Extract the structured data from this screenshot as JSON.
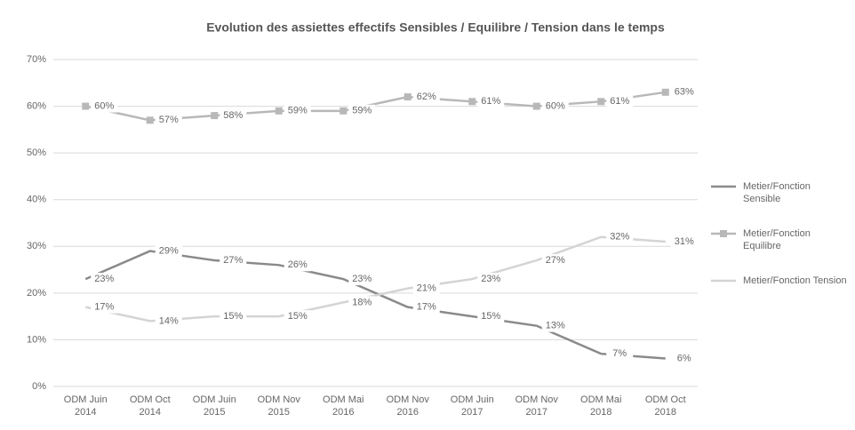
{
  "chart_data": {
    "type": "line",
    "title": "Evolution des assiettes effectifs Sensibles / Equilibre / Tension dans le temps",
    "categories": [
      "ODM Juin 2014",
      "ODM Oct 2014",
      "ODM Juin 2015",
      "ODM Nov 2015",
      "ODM Mai 2016",
      "ODM Nov 2016",
      "ODM Juin 2017",
      "ODM Nov 2017",
      "ODM Mai 2018",
      "ODM Oct 2018"
    ],
    "series": [
      {
        "name": "Metier/Fonction Sensible",
        "color": "#8a8a8a",
        "marker": "none",
        "values": [
          23,
          29,
          27,
          26,
          23,
          17,
          15,
          13,
          7,
          6
        ],
        "value_labels": [
          "23%",
          "29%",
          "27%",
          "26%",
          "23%",
          "17%",
          "15%",
          "13%",
          "7%",
          "6%"
        ]
      },
      {
        "name": "Metier/Fonction Equilibre",
        "color": "#b8b8b8",
        "marker": "square",
        "values": [
          60,
          57,
          58,
          59,
          59,
          62,
          61,
          60,
          61,
          63
        ],
        "value_labels": [
          "60%",
          "57%",
          "58%",
          "59%",
          "59%",
          "62%",
          "61%",
          "60%",
          "61%",
          "63%"
        ]
      },
      {
        "name": "Metier/Fonction Tension",
        "color": "#d4d4d4",
        "marker": "none",
        "values": [
          17,
          14,
          15,
          15,
          18,
          21,
          23,
          27,
          32,
          31
        ],
        "value_labels": [
          "17%",
          "14%",
          "15%",
          "15%",
          "18%",
          "21%",
          "23%",
          "27%",
          "32%",
          "31%"
        ]
      }
    ],
    "ylim": [
      0,
      70
    ],
    "yticks": [
      {
        "value": 0,
        "label": "0%"
      },
      {
        "value": 10,
        "label": "10%"
      },
      {
        "value": 20,
        "label": "20%"
      },
      {
        "value": 30,
        "label": "30%"
      },
      {
        "value": 40,
        "label": "40%"
      },
      {
        "value": 50,
        "label": "50%"
      },
      {
        "value": 60,
        "label": "60%"
      },
      {
        "value": 70,
        "label": "70%"
      }
    ],
    "grid": true,
    "legend": "right"
  }
}
